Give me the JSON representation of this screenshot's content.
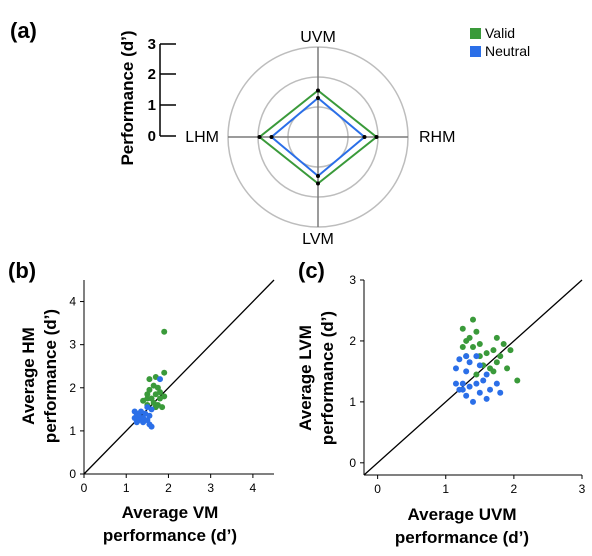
{
  "chart_data": [
    {
      "type": "radar",
      "panel": "(a)",
      "axis_labels": [
        "UVM",
        "RHM",
        "LVM",
        "LHM"
      ],
      "scale_label": "Performance (d’)",
      "scale_ticks": [
        "3",
        "2",
        "1",
        "0"
      ],
      "rmax": 3,
      "ring_values": [
        1,
        2,
        3
      ],
      "legend": {
        "position": "top-right"
      },
      "series": [
        {
          "name": "Valid",
          "color": "#3a9a3a",
          "values": [
            1.55,
            1.95,
            1.55,
            1.95
          ]
        },
        {
          "name": "Neutral",
          "color": "#2b6fe8",
          "values": [
            1.3,
            1.55,
            1.3,
            1.55
          ]
        }
      ]
    },
    {
      "type": "scatter",
      "panel": "(b)",
      "xlabel": [
        "Average VM",
        "performance (d’)"
      ],
      "ylabel": [
        "Average HM",
        "performance (d’)"
      ],
      "xlim": [
        0,
        4.5
      ],
      "ylim": [
        0,
        4.5
      ],
      "xticks": [
        "0",
        "1",
        "2",
        "3",
        "4"
      ],
      "yticks": [
        "0",
        "1",
        "2",
        "3",
        "4"
      ],
      "unity_line": true,
      "series": [
        {
          "name": "Valid",
          "color": "#3a9a3a",
          "points": [
            [
              1.9,
              3.3
            ],
            [
              1.55,
              2.2
            ],
            [
              1.7,
              2.25
            ],
            [
              1.9,
              2.35
            ],
            [
              1.65,
              2.05
            ],
            [
              1.75,
              2.0
            ],
            [
              1.55,
              1.95
            ],
            [
              1.8,
              1.9
            ],
            [
              1.5,
              1.85
            ],
            [
              1.7,
              1.85
            ],
            [
              1.9,
              1.8
            ],
            [
              1.5,
              1.75
            ],
            [
              1.6,
              1.75
            ],
            [
              1.8,
              1.75
            ],
            [
              1.4,
              1.7
            ],
            [
              1.65,
              1.65
            ],
            [
              1.75,
              1.6
            ],
            [
              1.5,
              1.6
            ],
            [
              1.85,
              1.55
            ],
            [
              1.7,
              1.55
            ]
          ]
        },
        {
          "name": "Neutral",
          "color": "#2b6fe8",
          "points": [
            [
              1.8,
              2.2
            ],
            [
              1.5,
              1.55
            ],
            [
              1.6,
              1.5
            ],
            [
              1.2,
              1.45
            ],
            [
              1.35,
              1.45
            ],
            [
              1.25,
              1.4
            ],
            [
              1.45,
              1.4
            ],
            [
              1.3,
              1.35
            ],
            [
              1.55,
              1.35
            ],
            [
              1.2,
              1.3
            ],
            [
              1.4,
              1.3
            ],
            [
              1.3,
              1.25
            ],
            [
              1.5,
              1.25
            ],
            [
              1.25,
              1.2
            ],
            [
              1.4,
              1.2
            ],
            [
              1.55,
              1.15
            ],
            [
              1.6,
              1.1
            ]
          ]
        }
      ]
    },
    {
      "type": "scatter",
      "panel": "(c)",
      "xlabel": [
        "Average UVM",
        "performance (d’)"
      ],
      "ylabel": [
        "Average LVM",
        "performance (d’)"
      ],
      "xlim": [
        -0.2,
        3
      ],
      "ylim": [
        -0.2,
        3
      ],
      "xticks": [
        "0",
        "1",
        "2",
        "3"
      ],
      "yticks": [
        "0",
        "1",
        "2",
        "3"
      ],
      "unity_line": true,
      "series": [
        {
          "name": "Valid",
          "color": "#3a9a3a",
          "points": [
            [
              1.4,
              2.35
            ],
            [
              1.25,
              2.2
            ],
            [
              1.45,
              2.15
            ],
            [
              1.35,
              2.05
            ],
            [
              1.75,
              2.05
            ],
            [
              1.3,
              2.0
            ],
            [
              1.5,
              1.95
            ],
            [
              1.85,
              1.95
            ],
            [
              1.25,
              1.9
            ],
            [
              1.4,
              1.9
            ],
            [
              1.7,
              1.85
            ],
            [
              1.95,
              1.85
            ],
            [
              1.6,
              1.8
            ],
            [
              1.3,
              1.75
            ],
            [
              1.5,
              1.75
            ],
            [
              1.8,
              1.75
            ],
            [
              1.75,
              1.65
            ],
            [
              1.55,
              1.6
            ],
            [
              1.9,
              1.55
            ],
            [
              1.65,
              1.55
            ],
            [
              1.45,
              1.45
            ],
            [
              2.05,
              1.35
            ],
            [
              1.7,
              1.5
            ]
          ]
        },
        {
          "name": "Neutral",
          "color": "#2b6fe8",
          "points": [
            [
              1.3,
              1.75
            ],
            [
              1.2,
              1.7
            ],
            [
              1.45,
              1.75
            ],
            [
              1.35,
              1.65
            ],
            [
              1.15,
              1.55
            ],
            [
              1.5,
              1.6
            ],
            [
              1.3,
              1.5
            ],
            [
              1.6,
              1.45
            ],
            [
              1.15,
              1.3
            ],
            [
              1.25,
              1.3
            ],
            [
              1.45,
              1.3
            ],
            [
              1.55,
              1.35
            ],
            [
              1.75,
              1.3
            ],
            [
              1.2,
              1.2
            ],
            [
              1.35,
              1.25
            ],
            [
              1.65,
              1.2
            ],
            [
              1.5,
              1.15
            ],
            [
              1.8,
              1.15
            ],
            [
              1.3,
              1.1
            ],
            [
              1.4,
              1.0
            ],
            [
              1.6,
              1.05
            ],
            [
              1.25,
              1.2
            ]
          ]
        }
      ]
    }
  ]
}
